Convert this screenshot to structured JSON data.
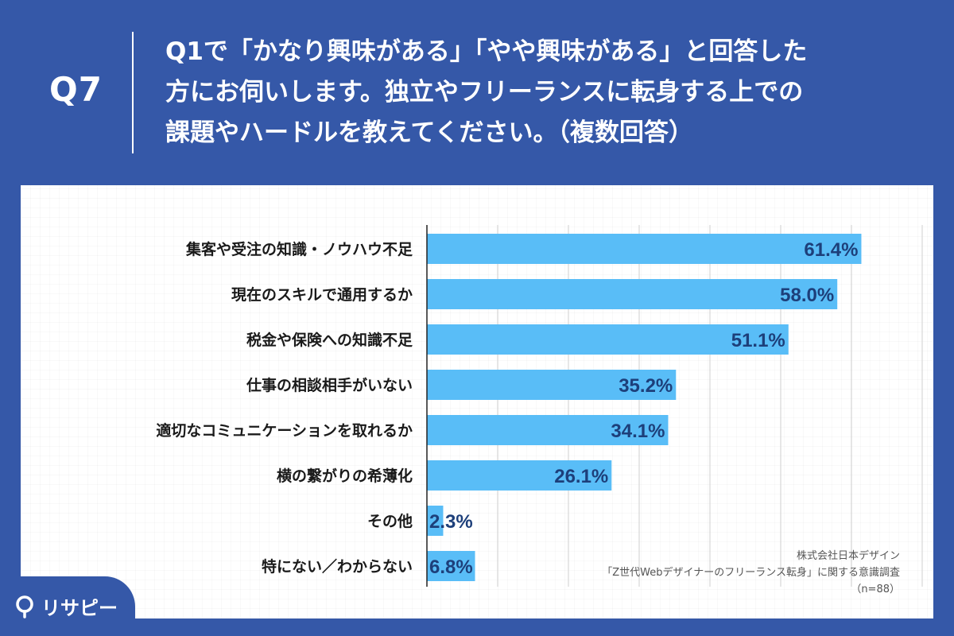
{
  "question": {
    "number": "Q7",
    "text": "Q1で「かなり興味がある」「やや興味がある」と回答した\n方にお伺いします。独立やフリーランスに転身する上での\n課題やハードルを教えてください。（複数回答）"
  },
  "source": {
    "company": "株式会社日本デザイン",
    "survey": "「Z世代Webデザイナーのフリーランス転身」に関する意識調査",
    "sample": "（n=88）"
  },
  "logo": {
    "text": "リサピー",
    "icon": "pin-icon"
  },
  "colors": {
    "background": "#3558a8",
    "bar": "#59bdf7",
    "value_text": "#1d3f7a"
  },
  "chart_data": {
    "type": "bar",
    "orientation": "horizontal",
    "categories": [
      "集客や受注の知識・ノウハウ不足",
      "現在のスキルで通用するか",
      "税金や保険への知識不足",
      "仕事の相談相手がいない",
      "適切なコミュニケーションを取れるか",
      "横の繋がりの希薄化",
      "その他",
      "特にない／わからない"
    ],
    "values": [
      61.4,
      58.0,
      51.1,
      35.2,
      34.1,
      26.1,
      2.3,
      6.8
    ],
    "value_labels": [
      "61.4%",
      "58.0%",
      "51.1%",
      "35.2%",
      "34.1%",
      "26.1%",
      "2.3%",
      "6.8%"
    ],
    "xlim": [
      0,
      70
    ],
    "grid": true,
    "legend": "none"
  }
}
